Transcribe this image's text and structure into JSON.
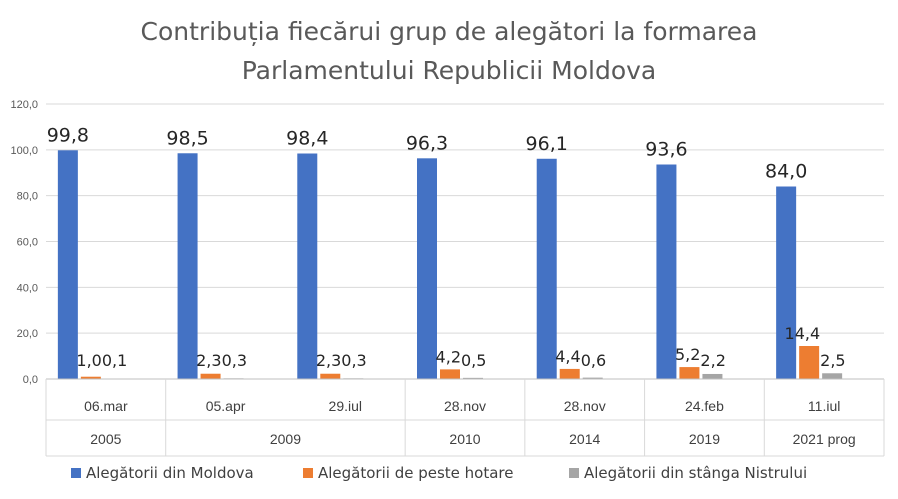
{
  "chart_data": {
    "type": "bar",
    "title_lines": [
      "Contribuția fiecărui grup de alegători la formarea",
      "Parlamentului Republicii Moldova"
    ],
    "categories": [
      "06.mar",
      "05.apr",
      "29.iul",
      "28.nov",
      "28.nov",
      "24.feb",
      "11.iul"
    ],
    "year_groups": [
      {
        "label": "2005",
        "span": 1
      },
      {
        "label": "2009",
        "span": 2
      },
      {
        "label": "2010",
        "span": 1
      },
      {
        "label": "2014",
        "span": 1
      },
      {
        "label": "2019",
        "span": 1
      },
      {
        "label": "2021 prog",
        "span": 1
      }
    ],
    "series": [
      {
        "name": "Alegătorii din Moldova",
        "color": "#4472C4",
        "values": [
          99.8,
          98.5,
          98.4,
          96.3,
          96.1,
          93.6,
          84.0
        ],
        "labels": [
          "99,8",
          "98,5",
          "98,4",
          "96,3",
          "96,1",
          "93,6",
          "84,0"
        ]
      },
      {
        "name": "Alegătorii de peste hotare",
        "color": "#ED7D31",
        "values": [
          1.0,
          2.3,
          2.3,
          4.2,
          4.4,
          5.2,
          14.4
        ],
        "labels": [
          "1,0",
          "2,3",
          "2,3",
          "4,2",
          "4,4",
          "5,2",
          "14,4"
        ]
      },
      {
        "name": "Alegătorii din stânga Nistrului",
        "color": "#A5A5A5",
        "values": [
          0.1,
          0.3,
          0.3,
          0.5,
          0.6,
          2.2,
          2.5
        ],
        "labels": [
          "0,1",
          "0,3",
          "0,3",
          "0,5",
          "0,6",
          "2,2",
          "2,5"
        ]
      }
    ],
    "y_ticks": [
      0,
      20,
      40,
      60,
      80,
      100,
      120
    ],
    "y_tick_labels": [
      "0,0",
      "20,0",
      "40,0",
      "60,0",
      "80,0",
      "100,0",
      "120,0"
    ],
    "ylim": [
      0,
      120
    ],
    "grid": true,
    "legend_position": "bottom"
  }
}
